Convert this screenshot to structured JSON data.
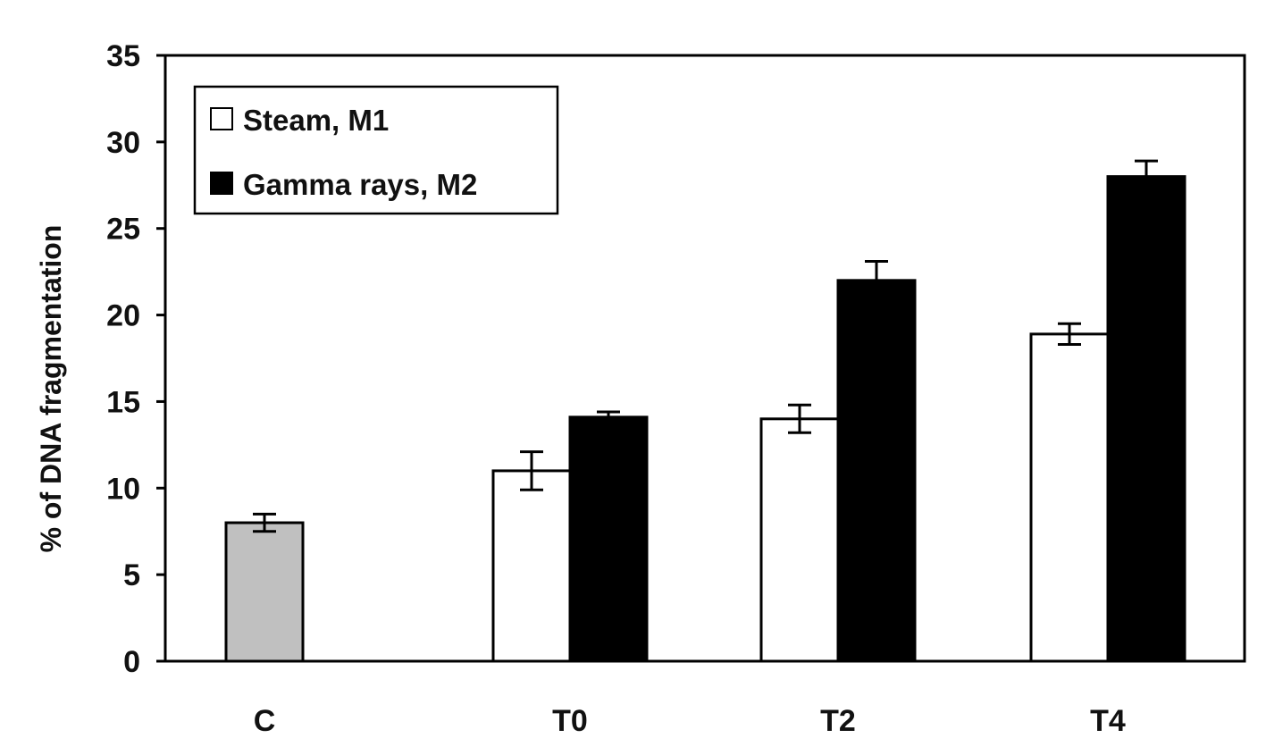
{
  "chart_data": {
    "type": "bar",
    "title": "",
    "xlabel": "",
    "ylabel": "% of DNA fragmentation",
    "ylim": [
      0,
      35
    ],
    "yticks": [
      0,
      5,
      10,
      15,
      20,
      25,
      30,
      35
    ],
    "categories": [
      "C",
      "T0",
      "T2",
      "T4"
    ],
    "grid": false,
    "legend_position": "top-left",
    "control": {
      "category": "C",
      "value": 8.0,
      "error": 0.5,
      "color": "#c0c0c0"
    },
    "series": [
      {
        "name": "Steam, M1",
        "color": "#ffffff",
        "values": [
          null,
          11.0,
          14.0,
          18.9
        ],
        "errors": [
          null,
          1.1,
          0.8,
          0.6
        ]
      },
      {
        "name": "Gamma rays, M2",
        "color": "#000000",
        "values": [
          null,
          14.1,
          22.0,
          28.0
        ],
        "errors": [
          null,
          0.3,
          1.1,
          0.9
        ]
      }
    ]
  }
}
